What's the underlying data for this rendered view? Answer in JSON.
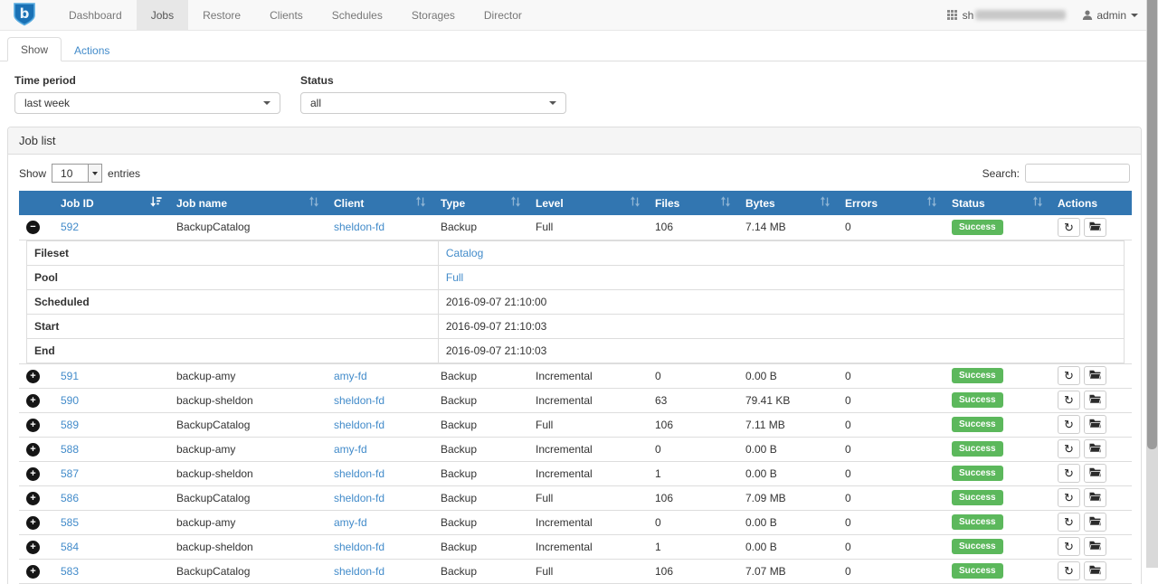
{
  "colors": {
    "header_blue": "#3276b1",
    "link_blue": "#428bca",
    "success_green": "#5cb85c",
    "navbar_bg": "#f8f8f8"
  },
  "navbar": {
    "brand_letter": "b",
    "items": [
      {
        "label": "Dashboard",
        "active": false
      },
      {
        "label": "Jobs",
        "active": true
      },
      {
        "label": "Restore",
        "active": false
      },
      {
        "label": "Clients",
        "active": false
      },
      {
        "label": "Schedules",
        "active": false
      },
      {
        "label": "Storages",
        "active": false
      },
      {
        "label": "Director",
        "active": false
      }
    ],
    "right": {
      "host_visible_prefix": "sh",
      "host_redacted": true,
      "user_label": "admin"
    }
  },
  "tabs": [
    {
      "label": "Show",
      "active": true
    },
    {
      "label": "Actions",
      "active": false
    }
  ],
  "filters": {
    "time_period": {
      "label": "Time period",
      "value": "last week"
    },
    "status": {
      "label": "Status",
      "value": "all"
    }
  },
  "panel": {
    "title": "Job list"
  },
  "table_controls": {
    "show_label": "Show",
    "entries_value": "10",
    "entries_label": "entries",
    "search_label": "Search:",
    "search_value": ""
  },
  "table": {
    "columns": [
      {
        "label": "",
        "sort": null
      },
      {
        "label": "Job ID",
        "sort": "desc"
      },
      {
        "label": "Job name",
        "sort": "both"
      },
      {
        "label": "Client",
        "sort": "both"
      },
      {
        "label": "Type",
        "sort": "both"
      },
      {
        "label": "Level",
        "sort": "both"
      },
      {
        "label": "Files",
        "sort": "both"
      },
      {
        "label": "Bytes",
        "sort": "both"
      },
      {
        "label": "Errors",
        "sort": "both"
      },
      {
        "label": "Status",
        "sort": "both"
      },
      {
        "label": "Actions",
        "sort": null
      }
    ],
    "rows": [
      {
        "id": "592",
        "name": "BackupCatalog",
        "client": "sheldon-fd",
        "type": "Backup",
        "level": "Full",
        "files": "106",
        "bytes": "7.14 MB",
        "errors": "0",
        "status": "Success",
        "expanded": true
      },
      {
        "id": "591",
        "name": "backup-amy",
        "client": "amy-fd",
        "type": "Backup",
        "level": "Incremental",
        "files": "0",
        "bytes": "0.00 B",
        "errors": "0",
        "status": "Success",
        "expanded": false
      },
      {
        "id": "590",
        "name": "backup-sheldon",
        "client": "sheldon-fd",
        "type": "Backup",
        "level": "Incremental",
        "files": "63",
        "bytes": "79.41 KB",
        "errors": "0",
        "status": "Success",
        "expanded": false
      },
      {
        "id": "589",
        "name": "BackupCatalog",
        "client": "sheldon-fd",
        "type": "Backup",
        "level": "Full",
        "files": "106",
        "bytes": "7.11 MB",
        "errors": "0",
        "status": "Success",
        "expanded": false
      },
      {
        "id": "588",
        "name": "backup-amy",
        "client": "amy-fd",
        "type": "Backup",
        "level": "Incremental",
        "files": "0",
        "bytes": "0.00 B",
        "errors": "0",
        "status": "Success",
        "expanded": false
      },
      {
        "id": "587",
        "name": "backup-sheldon",
        "client": "sheldon-fd",
        "type": "Backup",
        "level": "Incremental",
        "files": "1",
        "bytes": "0.00 B",
        "errors": "0",
        "status": "Success",
        "expanded": false
      },
      {
        "id": "586",
        "name": "BackupCatalog",
        "client": "sheldon-fd",
        "type": "Backup",
        "level": "Full",
        "files": "106",
        "bytes": "7.09 MB",
        "errors": "0",
        "status": "Success",
        "expanded": false
      },
      {
        "id": "585",
        "name": "backup-amy",
        "client": "amy-fd",
        "type": "Backup",
        "level": "Incremental",
        "files": "0",
        "bytes": "0.00 B",
        "errors": "0",
        "status": "Success",
        "expanded": false
      },
      {
        "id": "584",
        "name": "backup-sheldon",
        "client": "sheldon-fd",
        "type": "Backup",
        "level": "Incremental",
        "files": "1",
        "bytes": "0.00 B",
        "errors": "0",
        "status": "Success",
        "expanded": false
      },
      {
        "id": "583",
        "name": "BackupCatalog",
        "client": "sheldon-fd",
        "type": "Backup",
        "level": "Full",
        "files": "106",
        "bytes": "7.07 MB",
        "errors": "0",
        "status": "Success",
        "expanded": false
      }
    ],
    "detail": {
      "rows": [
        {
          "label": "Fileset",
          "value": "Catalog",
          "link": true
        },
        {
          "label": "Pool",
          "value": "Full",
          "link": true
        },
        {
          "label": "Scheduled",
          "value": "2016-09-07 21:10:00",
          "link": false
        },
        {
          "label": "Start",
          "value": "2016-09-07 21:10:03",
          "link": false
        },
        {
          "label": "End",
          "value": "2016-09-07 21:10:03",
          "link": false
        }
      ]
    }
  },
  "icons": {
    "brand": "shield-b",
    "apps": "grid-3x3",
    "user": "person",
    "expand": "plus-circle",
    "collapse": "minus-circle",
    "sort_active": "sort-desc-bars",
    "sort_inactive": "sort-up-down",
    "restart": "circular-arrow",
    "job_files": "open-folder",
    "dropdown": "caret-down"
  }
}
